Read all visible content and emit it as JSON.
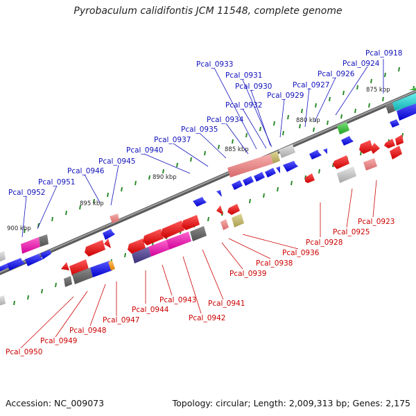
{
  "title": "Pyrobaculum calidifontis JCM 11548, complete genome",
  "footer": {
    "accession": "Accession: NC_009073",
    "topology": "Topology: circular; Length: 2,009,313 bp; Genes: 2,175"
  },
  "colors": {
    "backbone": "#808080",
    "forward_label": "#1010bb",
    "reverse_label": "#cc0000",
    "tick": "#2a8a2a"
  },
  "scale_labels": [
    "875 kbp",
    "880 kbp",
    "885 kbp",
    "890 kbp",
    "895 kbp",
    "900 kbp"
  ],
  "genes_top": [
    "Pcal_0918",
    "Pcal_0924",
    "Pcal_0926",
    "Pcal_0927",
    "Pcal_0929",
    "Pcal_0930",
    "Pcal_0931",
    "Pcal_0932",
    "Pcal_0933",
    "Pcal_0934",
    "Pcal_0935",
    "Pcal_0937",
    "Pcal_0940",
    "Pcal_0945",
    "Pcal_0946",
    "Pcal_0951",
    "Pcal_0952"
  ],
  "genes_bottom": [
    "Pcal_0923",
    "Pcal_0925",
    "Pcal_0928",
    "Pcal_0936",
    "Pcal_0938",
    "Pcal_0939",
    "Pcal_0941",
    "Pcal_0942",
    "Pcal_0943",
    "Pcal_0944",
    "Pcal_0947",
    "Pcal_0948",
    "Pcal_0949",
    "Pcal_0950"
  ]
}
